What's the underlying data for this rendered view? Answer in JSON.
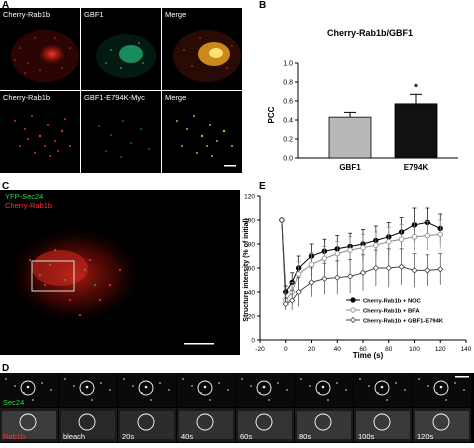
{
  "panels": {
    "A": {
      "letter": "A",
      "row1": [
        "Cherry-Rab1b",
        "GBF1",
        "Merge"
      ],
      "row2": [
        "Cherry-Rab1b",
        "GBF1-E794K-Myc",
        "Merge"
      ]
    },
    "B": {
      "letter": "B"
    },
    "C": {
      "letter": "C",
      "label_green": "YFP-Sec24",
      "label_red": "Cherry-Rab1b"
    },
    "D": {
      "letter": "D",
      "row_labels": [
        "Sec24",
        "Rab1b"
      ],
      "timepoints": [
        "bleach",
        "20s",
        "40s",
        "60s",
        "80s",
        "100s",
        "120s"
      ]
    },
    "E": {
      "letter": "E"
    }
  },
  "colors": {
    "red_channel": "#e03020",
    "green_channel": "#1fa870",
    "merge": "#e8b030",
    "bar_gbf1": "#b8b8b8",
    "bar_e794k": "#111111"
  },
  "chart_data": [
    {
      "type": "bar",
      "title": "Cherry-Rab1b/GBF1",
      "categories": [
        "GBF1",
        "E794K"
      ],
      "values": [
        0.43,
        0.57
      ],
      "errors": [
        0.05,
        0.1
      ],
      "ylabel": "PCC",
      "ylim": [
        0,
        1.0
      ],
      "yticks": [
        "0.0",
        "0.2",
        "0.4",
        "0.6",
        "0.8",
        "1.0"
      ],
      "annotations": [
        "*"
      ]
    },
    {
      "type": "line",
      "xlabel": "Time (s)",
      "ylabel": "Structure intensity (% of initial)",
      "xlim": [
        -20,
        140
      ],
      "ylim": [
        0,
        120
      ],
      "xticks": [
        "-20",
        "0",
        "20",
        "40",
        "60",
        "80",
        "100",
        "120",
        "140"
      ],
      "yticks": [
        "0",
        "20",
        "40",
        "60",
        "80",
        "100",
        "120"
      ],
      "legend_position": "lower-right",
      "x": [
        -3,
        0,
        5,
        10,
        20,
        30,
        40,
        50,
        60,
        70,
        80,
        90,
        100,
        110,
        120
      ],
      "series": [
        {
          "name": "Cherry-Rab1b + NOC",
          "marker": "filled-circle",
          "values": [
            100,
            40,
            48,
            60,
            70,
            74,
            76,
            78,
            80,
            83,
            86,
            90,
            96,
            98,
            93
          ],
          "errors": [
            0,
            5,
            8,
            10,
            10,
            10,
            11,
            11,
            12,
            12,
            12,
            12,
            14,
            12,
            12
          ]
        },
        {
          "name": "Cherry-Rab1b + BFA",
          "marker": "open-circle",
          "values": [
            100,
            33,
            40,
            55,
            63,
            68,
            72,
            75,
            77,
            79,
            82,
            84,
            86,
            87,
            88
          ],
          "errors": [
            0,
            6,
            8,
            10,
            10,
            10,
            10,
            11,
            11,
            11,
            12,
            12,
            12,
            12,
            12
          ]
        },
        {
          "name": "Cherry-Rab1b + GBF1-E794K",
          "marker": "open-diamond",
          "values": [
            100,
            30,
            33,
            40,
            48,
            51,
            52,
            53,
            56,
            60,
            60,
            61,
            58,
            58,
            59
          ],
          "errors": [
            0,
            5,
            8,
            12,
            12,
            13,
            14,
            14,
            15,
            15,
            16,
            15,
            14,
            13,
            13
          ]
        }
      ]
    }
  ]
}
